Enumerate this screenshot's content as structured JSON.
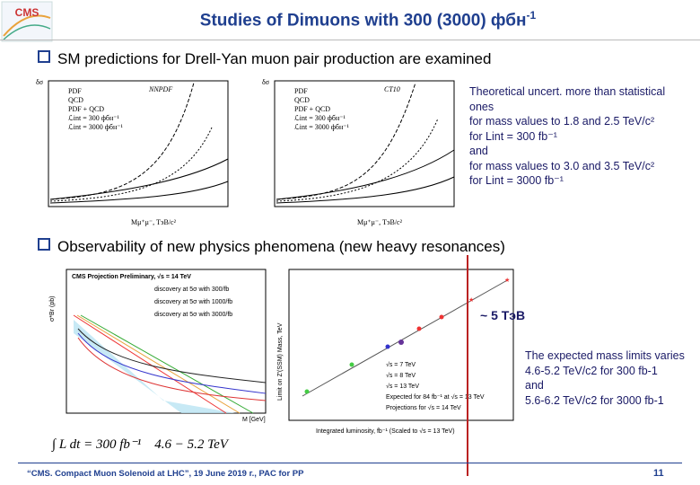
{
  "logo": "CMS",
  "header": {
    "title": "Studies of Dimuons with 300 (3000) фбн",
    "title_sup": "-1"
  },
  "bullets": [
    "SM predictions for Drell-Yan muon pair production are examined",
    "Observability of new physics phenomena (new heavy resonances)"
  ],
  "note1": [
    "Theoretical uncert. more than statistical",
    "ones",
    "for mass values to 1.8 and 2.5 TeV/c²",
    "for Lint = 300 fb⁻¹",
    "and",
    "for mass values to 3.0 and 3.5 TeV/c²",
    "for Lint = 3000 fb⁻¹"
  ],
  "plots": [
    {
      "title": "NNPDF",
      "ylabel": "δσ",
      "xlabel": "Mμ⁺μ⁻, ТэВ/c²",
      "legend": [
        "PDF",
        "QCD",
        "PDF + QCD",
        "ℒint = 300 фбн⁻¹",
        "ℒint = 3000 фбн⁻¹"
      ]
    },
    {
      "title": "CT10",
      "ylabel": "δσ",
      "xlabel": "Mμ⁺μ⁻, ТэВ/c²",
      "legend": [
        "PDF",
        "QCD",
        "PDF + QCD",
        "ℒint = 300 фбн⁻¹",
        "ℒint = 3000 фбн⁻¹"
      ]
    },
    {
      "title": "CMS Projection Preliminary, √s = 14 TeV",
      "ylabel": "σ*Br (pb)",
      "xlabel": "M [GeV]",
      "legend": [
        "discovery at 5σ with 300/fb",
        "discovery at 5σ with 1000/fb",
        "discovery at 5σ with 3000/fb"
      ]
    },
    {
      "ylabel": "Limit on Z′(SSM) Mass, TeV",
      "xlabel": "Integrated luminosity, fb⁻¹ (Scaled to √s = 13 TeV)",
      "legend": [
        "√s = 7 TeV",
        "√s = 8 TeV",
        "√s = 13 TeV",
        "Expected for 84 fb⁻¹ at √s = 13 TeV",
        "Projections for √s = 14 TeV"
      ]
    }
  ],
  "annotation": "~ 5 ТэВ",
  "note2": [
    "The expected mass limits varies",
    "4.6-5.2 TeV/c2 for 300 fb-1",
    "and",
    "5.6-6.2 TeV/c2 for 3000 fb-1"
  ],
  "formula": "∫ L dt = 300 fb⁻¹    4.6 − 5.2 TeV",
  "footer": "“CMS. Compact Muon Solenoid at LHC”, 19 June 2019 г., PAC for PP",
  "page": "11"
}
